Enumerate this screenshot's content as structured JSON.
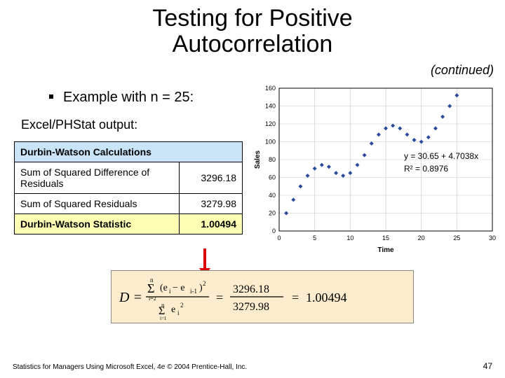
{
  "title_line1": "Testing for Positive",
  "title_line2": "Autocorrelation",
  "continued": "(continued)",
  "example": "Example with  n = 25:",
  "output_label": "Excel/PHStat output:",
  "table": {
    "header": "Durbin-Watson Calculations",
    "row1_label": "Sum of Squared Difference of Residuals",
    "row1_val": "3296.18",
    "row2_label": "Sum of Squared Residuals",
    "row2_val": "3279.98",
    "row3_label": "Durbin-Watson Statistic",
    "row3_val": "1.00494",
    "colors": {
      "header_bg": "#c9e4f7",
      "stat_bg": "#ffffb3",
      "border": "#000000"
    }
  },
  "chart": {
    "type": "scatter",
    "xlabel": "Time",
    "ylabel": "Sales",
    "xlim": [
      0,
      30
    ],
    "xtick_step": 5,
    "ylim": [
      0,
      160
    ],
    "ytick_step": 20,
    "marker": {
      "shape": "diamond",
      "fill": "#2a4b9b",
      "size": 6
    },
    "grid_color": "#c8c8c8",
    "axis_color": "#000000",
    "background": "#ffffff",
    "label_fontsize": 10,
    "tick_fontsize": 9,
    "regression": {
      "slope": 4.7038,
      "intercept": 30.65,
      "r2": 0.8976
    },
    "eq_text1": "y = 30.65 + 4.7038x",
    "eq_text2": "R² = 0.8976",
    "points": [
      {
        "x": 1,
        "y": 20
      },
      {
        "x": 2,
        "y": 35
      },
      {
        "x": 3,
        "y": 50
      },
      {
        "x": 4,
        "y": 62
      },
      {
        "x": 5,
        "y": 70
      },
      {
        "x": 6,
        "y": 74
      },
      {
        "x": 7,
        "y": 72
      },
      {
        "x": 8,
        "y": 65
      },
      {
        "x": 9,
        "y": 62
      },
      {
        "x": 10,
        "y": 65
      },
      {
        "x": 11,
        "y": 74
      },
      {
        "x": 12,
        "y": 85
      },
      {
        "x": 13,
        "y": 98
      },
      {
        "x": 14,
        "y": 108
      },
      {
        "x": 15,
        "y": 115
      },
      {
        "x": 16,
        "y": 118
      },
      {
        "x": 17,
        "y": 115
      },
      {
        "x": 18,
        "y": 108
      },
      {
        "x": 19,
        "y": 102
      },
      {
        "x": 20,
        "y": 100
      },
      {
        "x": 21,
        "y": 105
      },
      {
        "x": 22,
        "y": 115
      },
      {
        "x": 23,
        "y": 128
      },
      {
        "x": 24,
        "y": 140
      },
      {
        "x": 25,
        "y": 152
      }
    ]
  },
  "formula": {
    "text": "D = Σ(eᵢ − eᵢ₋₁)² / Σeᵢ² = 3296.18 / 3279.98 = 1.00494",
    "num": "3296.18",
    "den": "3279.98",
    "res": "1.00494",
    "bg": "#fdeccd"
  },
  "footer": "Statistics for Managers Using Microsoft Excel, 4e © 2004 Prentice-Hall, Inc.",
  "page": "47"
}
